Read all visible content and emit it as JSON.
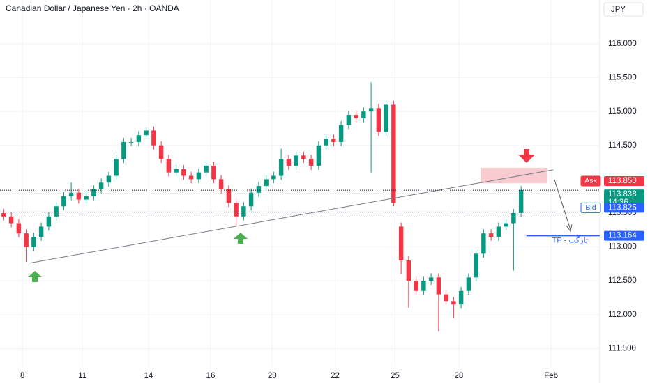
{
  "chart_data": {
    "type": "candlestick",
    "title": "Canadian Dollar / Japanese Yen · 2h · OANDA",
    "currency": "JPY",
    "xlim": [
      0,
      80
    ],
    "ylim": [
      111.226,
      116.648
    ],
    "xticks": [
      {
        "value": 3,
        "label": "8"
      },
      {
        "value": 11,
        "label": "11"
      },
      {
        "value": 19.8,
        "label": "14"
      },
      {
        "value": 28.1,
        "label": "16"
      },
      {
        "value": 36.3,
        "label": "20"
      },
      {
        "value": 44.7,
        "label": "22"
      },
      {
        "value": 52.7,
        "label": "25"
      },
      {
        "value": 61.2,
        "label": "28"
      },
      {
        "value": 73.5,
        "label": "Feb"
      }
    ],
    "yticks": [
      {
        "value": 111.5,
        "label": "111.500"
      },
      {
        "value": 112,
        "label": "112.000"
      },
      {
        "value": 112.5,
        "label": "112.500"
      },
      {
        "value": 113,
        "label": "113.000"
      },
      {
        "value": 113.5,
        "label": "113.500"
      },
      {
        "value": 114.5,
        "label": "114.500"
      },
      {
        "value": 115,
        "label": "115.000"
      },
      {
        "value": 115.5,
        "label": "115.500"
      },
      {
        "value": 116,
        "label": "116.000"
      }
    ],
    "grid": true,
    "up_color": "#089981",
    "down_color": "#f23645",
    "x": [
      0.5,
      1.5,
      2.5,
      3.5,
      4.5,
      5.5,
      6.5,
      7.5,
      8.5,
      9.5,
      10.5,
      11.5,
      12.5,
      13.5,
      14.5,
      15.5,
      16.5,
      17.5,
      18.5,
      19.5,
      20.5,
      21.5,
      22.5,
      23.5,
      24.5,
      25.5,
      26.5,
      27.5,
      28.5,
      29.5,
      30.5,
      31.5,
      32.5,
      33.5,
      34.5,
      35.5,
      36.5,
      37.5,
      38.5,
      39.5,
      40.5,
      41.5,
      42.5,
      43.5,
      44.5,
      45.5,
      46.5,
      47.5,
      48.5,
      49.5,
      50.5,
      51.5,
      52.5,
      53.5,
      54.5,
      55.5,
      56.5,
      57.5,
      58.5,
      59.5,
      60.5,
      61.5,
      62.5,
      63.5,
      64.5,
      65.5,
      66.5,
      67.5,
      68.5,
      69.5
    ],
    "open": [
      113.5,
      113.45,
      113.35,
      113.2,
      113.0,
      113.15,
      113.3,
      113.45,
      113.6,
      113.75,
      113.8,
      113.7,
      113.75,
      113.85,
      113.95,
      114.05,
      114.3,
      114.55,
      114.55,
      114.65,
      114.72,
      114.5,
      114.3,
      114.1,
      114.15,
      114.05,
      114.0,
      114.1,
      114.2,
      114.0,
      113.85,
      113.65,
      113.45,
      113.6,
      113.8,
      113.9,
      114.0,
      114.05,
      114.3,
      114.2,
      114.35,
      114.3,
      114.2,
      114.5,
      114.6,
      114.55,
      114.8,
      114.95,
      114.9,
      115.0,
      115.05,
      114.7,
      115.1,
      113.3,
      112.8,
      112.5,
      112.35,
      112.5,
      112.55,
      112.3,
      112.2,
      112.15,
      112.35,
      112.55,
      112.9,
      113.2,
      113.15,
      113.3,
      113.35,
      113.5
    ],
    "high": [
      113.56,
      113.51,
      113.41,
      113.26,
      113.21,
      113.36,
      113.51,
      113.66,
      113.81,
      113.95,
      113.86,
      113.81,
      113.91,
      114.01,
      114.11,
      114.36,
      114.61,
      114.61,
      114.71,
      114.76,
      114.78,
      114.56,
      114.36,
      114.21,
      114.21,
      114.11,
      114.16,
      114.26,
      114.26,
      114.06,
      113.91,
      113.71,
      113.66,
      113.86,
      113.96,
      114.06,
      114.11,
      114.45,
      114.36,
      114.41,
      114.41,
      114.36,
      114.56,
      114.66,
      114.66,
      114.86,
      115.01,
      115.01,
      115.06,
      115.43,
      115.11,
      115.16,
      115.16,
      113.36,
      112.86,
      112.56,
      112.56,
      112.61,
      112.61,
      112.36,
      112.26,
      112.41,
      112.61,
      112.96,
      113.26,
      113.26,
      113.36,
      113.41,
      113.56,
      113.9
    ],
    "low": [
      113.39,
      113.29,
      113.14,
      112.78,
      112.94,
      113.09,
      113.24,
      113.39,
      113.54,
      113.69,
      113.64,
      113.64,
      113.69,
      113.79,
      113.89,
      113.99,
      114.24,
      114.49,
      114.49,
      114.59,
      114.44,
      114.24,
      114.04,
      114.04,
      113.99,
      113.94,
      113.94,
      114.04,
      113.94,
      113.79,
      113.59,
      113.3,
      113.39,
      113.54,
      113.74,
      113.84,
      113.94,
      113.99,
      114.14,
      114.14,
      114.24,
      114.14,
      114.14,
      114.44,
      114.49,
      114.49,
      114.74,
      114.84,
      114.84,
      114.1,
      114.64,
      114.64,
      113.6,
      112.6,
      112.1,
      112.29,
      112.29,
      112.44,
      111.75,
      112.14,
      111.95,
      112.09,
      112.29,
      112.49,
      112.84,
      113.09,
      113.09,
      113.24,
      112.65,
      113.44
    ],
    "close": [
      113.45,
      113.35,
      113.2,
      113.0,
      113.15,
      113.3,
      113.45,
      113.6,
      113.75,
      113.8,
      113.7,
      113.75,
      113.85,
      113.95,
      114.05,
      114.3,
      114.55,
      114.55,
      114.65,
      114.72,
      114.5,
      114.3,
      114.1,
      114.15,
      114.05,
      114.0,
      114.1,
      114.2,
      114.0,
      113.85,
      113.65,
      113.45,
      113.6,
      113.8,
      113.9,
      114.0,
      114.05,
      114.3,
      114.2,
      114.35,
      114.3,
      114.2,
      114.5,
      114.6,
      114.55,
      114.8,
      114.95,
      114.9,
      115.0,
      115.05,
      114.7,
      115.1,
      113.65,
      112.8,
      112.5,
      112.35,
      112.5,
      112.55,
      112.3,
      112.2,
      112.15,
      112.35,
      112.55,
      112.9,
      113.2,
      113.15,
      113.3,
      113.35,
      113.5,
      113.84
    ],
    "trendline": {
      "x": [
        3.9,
        73.8
      ],
      "y": [
        112.76,
        114.14
      ],
      "color": "#787b86"
    },
    "zone": {
      "x": [
        64.1,
        73.0
      ],
      "y": [
        113.94,
        114.17
      ],
      "color": "#f7c5cc"
    },
    "target": {
      "label": "TP - تارگت",
      "value": 113.164,
      "x": 70.2,
      "color": "#2962ff"
    },
    "price_labels": [
      {
        "tag": "Ask",
        "value": 113.85,
        "label": "113.850",
        "color": "#f23645"
      },
      {
        "value": 113.838,
        "label": "113.838",
        "countdown": "14:36",
        "color": "#089981"
      },
      {
        "tag": "Bid",
        "value": 113.825,
        "label": "113.825",
        "color": "#2962ff"
      },
      {
        "value": 113.164,
        "label": "113.164",
        "color": "#2962ff"
      }
    ]
  }
}
